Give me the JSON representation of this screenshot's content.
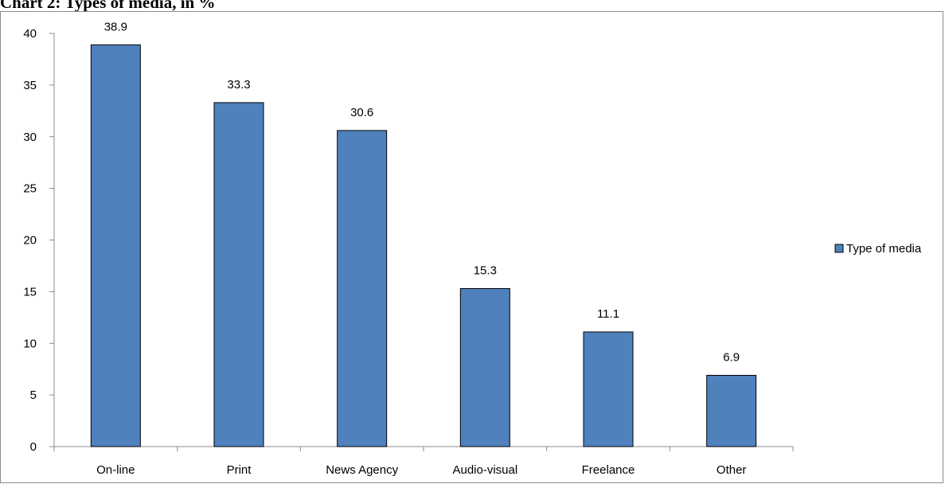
{
  "chart_data": {
    "type": "bar",
    "title": "Chart 2: Types of media, in %",
    "categories": [
      "On-line",
      "Print",
      "News Agency",
      "Audio-visual",
      "Freelance",
      "Other"
    ],
    "series": [
      {
        "name": "Type of media",
        "values": [
          38.9,
          33.3,
          30.6,
          15.3,
          11.1,
          6.9
        ]
      }
    ],
    "data_labels": [
      "38.9",
      "33.3",
      "30.6",
      "15.3",
      "11.1",
      "6.9"
    ],
    "ylim": [
      0,
      40
    ],
    "yticks": [
      0,
      5,
      10,
      15,
      20,
      25,
      30,
      35,
      40
    ],
    "grid": false,
    "legend_position": "right",
    "bar_color": "#4F81BD",
    "bar_border_color": "#000000"
  }
}
